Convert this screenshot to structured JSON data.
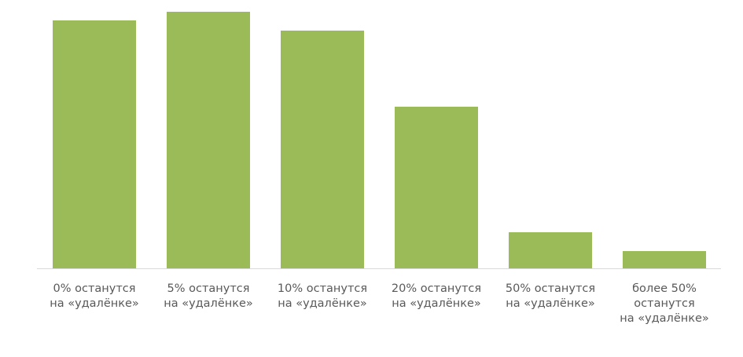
{
  "chart_data": {
    "type": "bar",
    "categories": [
      "0% останутся\nна «удалёнке»",
      "5% останутся\nна «удалёнке»",
      "10% останутся\nна «удалёнке»",
      "20% останутся\nна «удалёнке»",
      "50% останутся\nна «удалёнке»",
      "более 50%\nостанутся\nна «удалёнке»"
    ],
    "values": [
      316,
      327,
      303,
      206,
      46,
      22
    ],
    "color": "#9bbb59",
    "ylim": [
      0,
      330
    ]
  }
}
